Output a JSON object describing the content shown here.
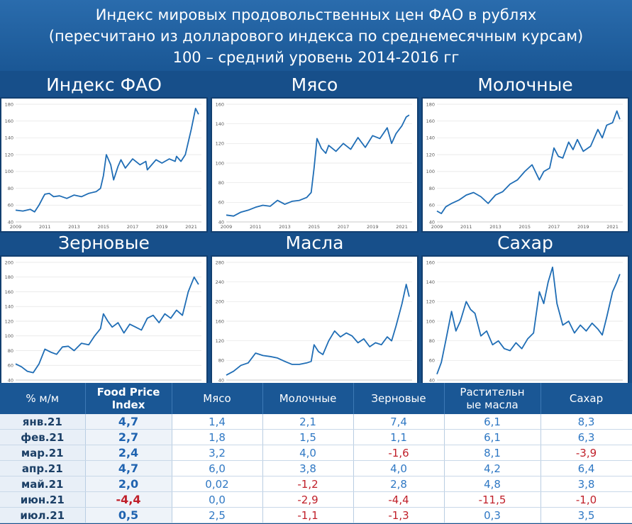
{
  "header": {
    "line1": "Индекс мировых продовольственных цен ФАО в рублях",
    "line2": "(пересчитано из долларового индекса по среднемесячным курсам)",
    "line3": "100 – средний уровень 2014-2016 гг"
  },
  "chart_data": [
    {
      "type": "line",
      "title": "Индекс ФАО",
      "ylim": [
        40,
        180
      ],
      "yticks": [
        40,
        60,
        80,
        100,
        120,
        140,
        160,
        180
      ],
      "xlim": [
        2009,
        2021.7
      ],
      "xticks": [
        2009,
        2011,
        2013,
        2015,
        2017,
        2019,
        2021
      ],
      "series": [
        {
          "x": [
            2009,
            2009.5,
            2010,
            2010.3,
            2010.6,
            2010.9,
            2011,
            2011.3,
            2011.6,
            2012,
            2012.5,
            2013,
            2013.5,
            2014,
            2014.5,
            2014.8,
            2015,
            2015.2,
            2015.5,
            2015.7,
            2016,
            2016.2,
            2016.5,
            2017,
            2017.5,
            2017.9,
            2018,
            2018.3,
            2018.6,
            2019,
            2019.5,
            2019.9,
            2020,
            2020.3,
            2020.6,
            2021,
            2021.3,
            2021.5
          ],
          "y": [
            54,
            53,
            55,
            52,
            60,
            70,
            73,
            74,
            70,
            71,
            68,
            72,
            70,
            74,
            76,
            80,
            95,
            120,
            108,
            90,
            106,
            114,
            104,
            115,
            108,
            112,
            102,
            108,
            114,
            110,
            115,
            112,
            118,
            112,
            120,
            150,
            175,
            168
          ]
        }
      ]
    },
    {
      "type": "line",
      "title": "Мясо",
      "ylim": [
        40,
        160
      ],
      "yticks": [
        40,
        60,
        80,
        100,
        120,
        140,
        160
      ],
      "xlim": [
        2009,
        2021.7
      ],
      "xticks": [
        2009,
        2011,
        2013,
        2015,
        2017,
        2019,
        2021
      ],
      "series": [
        {
          "x": [
            2009,
            2009.5,
            2010,
            2010.5,
            2011,
            2011.5,
            2012,
            2012.5,
            2013,
            2013.5,
            2014,
            2014.5,
            2014.8,
            2015,
            2015.2,
            2015.5,
            2015.8,
            2016,
            2016.5,
            2017,
            2017.5,
            2018,
            2018.5,
            2019,
            2019.5,
            2020,
            2020.3,
            2020.6,
            2021,
            2021.3,
            2021.5
          ],
          "y": [
            47,
            46,
            50,
            52,
            55,
            57,
            56,
            62,
            58,
            61,
            62,
            65,
            70,
            95,
            125,
            115,
            110,
            118,
            112,
            120,
            114,
            126,
            116,
            128,
            125,
            136,
            120,
            130,
            138,
            147,
            149
          ]
        }
      ]
    },
    {
      "type": "line",
      "title": "Молочные",
      "ylim": [
        40,
        180
      ],
      "yticks": [
        40,
        60,
        80,
        100,
        120,
        140,
        160,
        180
      ],
      "xlim": [
        2009,
        2021.7
      ],
      "xticks": [
        2009,
        2011,
        2013,
        2015,
        2017,
        2019,
        2021
      ],
      "series": [
        {
          "x": [
            2009,
            2009.3,
            2009.6,
            2010,
            2010.5,
            2011,
            2011.5,
            2012,
            2012.5,
            2013,
            2013.5,
            2014,
            2014.5,
            2015,
            2015.5,
            2016,
            2016.3,
            2016.7,
            2017,
            2017.3,
            2017.6,
            2018,
            2018.3,
            2018.6,
            2019,
            2019.5,
            2020,
            2020.3,
            2020.6,
            2021,
            2021.3,
            2021.5
          ],
          "y": [
            53,
            50,
            58,
            62,
            66,
            72,
            75,
            70,
            62,
            72,
            76,
            85,
            90,
            100,
            108,
            90,
            100,
            104,
            128,
            118,
            116,
            135,
            126,
            138,
            124,
            130,
            150,
            140,
            155,
            158,
            172,
            162
          ]
        }
      ]
    },
    {
      "type": "line",
      "title": "Зерновые",
      "ylim": [
        40,
        200
      ],
      "yticks": [
        40,
        60,
        80,
        100,
        120,
        140,
        160,
        180,
        200
      ],
      "xlim": [
        2009,
        2021.7
      ],
      "xticks": [
        2009,
        2011,
        2013,
        2015,
        2017,
        2019,
        2021
      ],
      "series": [
        {
          "x": [
            2009,
            2009.4,
            2009.8,
            2010.2,
            2010.6,
            2011,
            2011.4,
            2011.8,
            2012.2,
            2012.6,
            2013,
            2013.5,
            2014,
            2014.4,
            2014.8,
            2015,
            2015.3,
            2015.6,
            2016,
            2016.4,
            2016.8,
            2017.2,
            2017.6,
            2018,
            2018.4,
            2018.8,
            2019.2,
            2019.6,
            2020,
            2020.4,
            2020.8,
            2021.2,
            2021.5
          ],
          "y": [
            62,
            58,
            52,
            50,
            62,
            82,
            78,
            75,
            85,
            86,
            80,
            90,
            88,
            100,
            110,
            130,
            120,
            112,
            118,
            104,
            116,
            112,
            108,
            124,
            128,
            118,
            130,
            124,
            135,
            128,
            160,
            180,
            170
          ]
        }
      ]
    },
    {
      "type": "line",
      "title": "Масла",
      "ylim": [
        40,
        280
      ],
      "yticks": [
        40,
        80,
        120,
        160,
        200,
        240,
        280
      ],
      "xlim": [
        2009,
        2021.7
      ],
      "xticks": [
        2009,
        2011,
        2013,
        2015,
        2017,
        2019,
        2021
      ],
      "series": [
        {
          "x": [
            2009,
            2009.5,
            2010,
            2010.5,
            2011,
            2011.5,
            2012,
            2012.5,
            2013,
            2013.5,
            2014,
            2014.5,
            2014.8,
            2015,
            2015.3,
            2015.6,
            2016,
            2016.4,
            2016.8,
            2017.2,
            2017.6,
            2018,
            2018.4,
            2018.8,
            2019.2,
            2019.6,
            2020,
            2020.3,
            2020.6,
            2021,
            2021.3,
            2021.5
          ],
          "y": [
            50,
            58,
            70,
            75,
            95,
            90,
            88,
            85,
            78,
            72,
            72,
            75,
            78,
            112,
            98,
            92,
            120,
            140,
            128,
            136,
            130,
            116,
            124,
            108,
            116,
            112,
            128,
            120,
            150,
            195,
            235,
            210
          ]
        }
      ]
    },
    {
      "type": "line",
      "title": "Сахар",
      "ylim": [
        40,
        160
      ],
      "yticks": [
        40,
        60,
        80,
        100,
        120,
        140,
        160
      ],
      "xlim": [
        2009,
        2021.7
      ],
      "xticks": [
        2009,
        2011,
        2013,
        2015,
        2017,
        2019,
        2021
      ],
      "series": [
        {
          "x": [
            2009,
            2009.3,
            2009.6,
            2010,
            2010.3,
            2010.6,
            2011,
            2011.3,
            2011.6,
            2012,
            2012.4,
            2012.8,
            2013.2,
            2013.6,
            2014,
            2014.4,
            2014.8,
            2015.2,
            2015.6,
            2016,
            2016.3,
            2016.6,
            2016.9,
            2017.2,
            2017.6,
            2018,
            2018.4,
            2018.8,
            2019.2,
            2019.6,
            2020,
            2020.3,
            2020.6,
            2021,
            2021.3,
            2021.5
          ],
          "y": [
            46,
            58,
            80,
            110,
            90,
            100,
            120,
            112,
            108,
            85,
            90,
            76,
            80,
            72,
            70,
            78,
            72,
            82,
            88,
            130,
            118,
            140,
            155,
            118,
            96,
            100,
            88,
            96,
            90,
            98,
            92,
            86,
            104,
            130,
            140,
            148
          ]
        }
      ]
    }
  ],
  "table": {
    "headers": [
      "% м/м",
      "Food Price Index",
      "Мясо",
      "Молочные",
      "Зерновые",
      "Растительные масла",
      "Сахар"
    ],
    "rows": [
      [
        "янв.21",
        "4,7",
        "1,4",
        "2,1",
        "7,4",
        "6,1",
        "8,3"
      ],
      [
        "фев.21",
        "2,7",
        "1,8",
        "1,5",
        "1,1",
        "6,1",
        "6,3"
      ],
      [
        "мар.21",
        "2,4",
        "3,2",
        "4,0",
        "-1,6",
        "8,1",
        "-3,9"
      ],
      [
        "апр.21",
        "4,7",
        "6,0",
        "3,8",
        "4,0",
        "4,2",
        "6,4"
      ],
      [
        "май.21",
        "2,0",
        "0,02",
        "-1,2",
        "2,8",
        "4,8",
        "3,8"
      ],
      [
        "июн.21",
        "-4,4",
        "0,0",
        "-2,9",
        "-4,4",
        "-11,5",
        "-1,0"
      ],
      [
        "июл.21",
        "0,5",
        "2,5",
        "-1,1",
        "-1,3",
        "0,3",
        "3,5"
      ]
    ],
    "header_lines": {
      "fpi": [
        "Food Price",
        "Index"
      ],
      "oils": [
        "Растительн",
        "ые масла"
      ]
    }
  },
  "colors": {
    "line": "#1f6db5",
    "negative": "#c0202a",
    "header_bg": "#1a5795"
  }
}
